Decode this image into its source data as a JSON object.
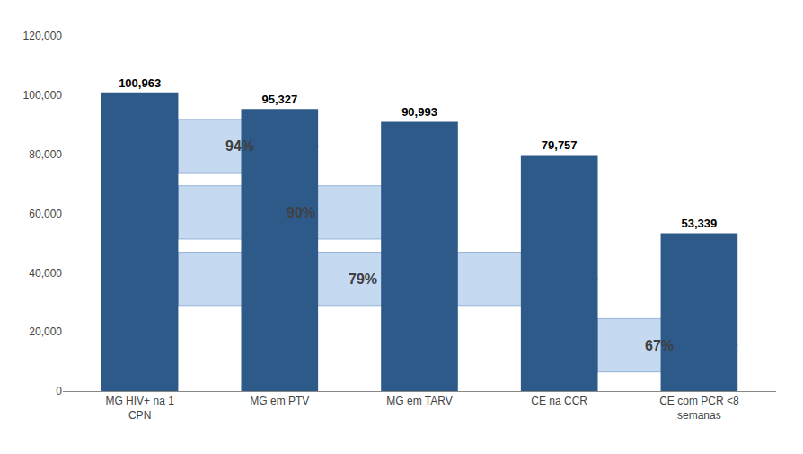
{
  "chart_data": {
    "type": "bar",
    "categories": [
      "MG HIV+ na 1\nCPN",
      "MG em PTV",
      "MG em TARV",
      "CE na CCR",
      "CE com PCR <8\nsemanas"
    ],
    "values": [
      100963,
      95327,
      90993,
      79757,
      53339
    ],
    "value_labels": [
      "100,963",
      "95,327",
      "90,993",
      "79,757",
      "53,339"
    ],
    "data_labels": true,
    "color": "#2E5A8A",
    "ylim": [
      0,
      120000
    ],
    "yticks": [
      0,
      {
        "value": 20000,
        "label": "20,000"
      },
      {
        "value": 40000,
        "label": "40,000"
      },
      {
        "value": 60000,
        "label": "60,000"
      },
      {
        "value": 80000,
        "label": "80,000"
      },
      {
        "value": 100000,
        "label": "100,000"
      },
      {
        "value": 120000,
        "label": "120,000"
      }
    ],
    "grid": false,
    "annotations": [
      {
        "text": "94%",
        "from": "MG HIV+ na 1\nCPN",
        "to": "MG em PTV",
        "color": "#C5D9F1"
      },
      {
        "text": "90%",
        "from": "MG HIV+ na 1\nCPN",
        "to": "MG em TARV",
        "color": "#C5D9F1"
      },
      {
        "text": "79%",
        "from": "MG HIV+ na 1\nCPN",
        "to": "CE na CCR",
        "color": "#C5D9F1"
      },
      {
        "text": "67%",
        "from": "CE na CCR",
        "to": "CE com PCR <8\nsemanas",
        "color": "#C5D9F1"
      }
    ]
  }
}
